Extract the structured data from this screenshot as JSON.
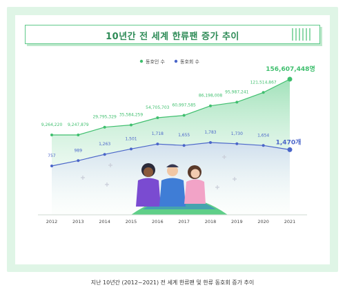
{
  "title": "10년간 전 세계 한류팬 증가 추이",
  "caption": "지난 10년간 (2012~2021) 전 세계 한류팬 및 한류 동호회 증가 추이",
  "colors": {
    "fans": "#3fbf6e",
    "clubs": "#4a65c9",
    "frame": "#dff5e6",
    "accent": "#5ec98a"
  },
  "chart_data": {
    "type": "line",
    "title": "10년간 전 세계 한류팬 증가 추이",
    "legend_position": "top-center",
    "x": [
      "2012",
      "2013",
      "2014",
      "2015",
      "2016",
      "2017",
      "2018",
      "2019",
      "2020",
      "2021"
    ],
    "series": [
      {
        "name": "동호인 수",
        "labels": [
          "9,264,220",
          "9,247,879",
          "29,795,329",
          "35,584,259",
          "54,705,703",
          "60,997,585",
          "86,198,008",
          "95,987,241",
          "121,514,867",
          "156,607,448명"
        ],
        "values": [
          9264220,
          9247879,
          29795329,
          35584259,
          54705703,
          60997585,
          86198008,
          95987241,
          121514867,
          156607448
        ]
      },
      {
        "name": "동호회 수",
        "labels": [
          "757",
          "989",
          "1,263",
          "1,501",
          "1,718",
          "1,655",
          "1,783",
          "1,730",
          "1,654",
          "1,470개"
        ],
        "values": [
          757,
          989,
          1263,
          1501,
          1718,
          1655,
          1783,
          1730,
          1654,
          1470
        ]
      }
    ]
  }
}
